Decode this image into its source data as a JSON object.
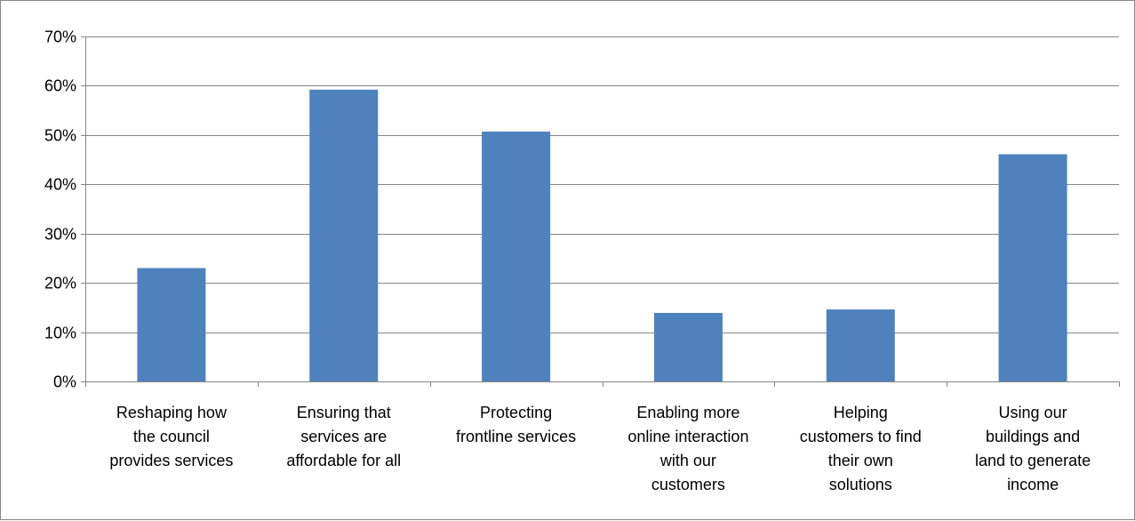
{
  "chart_data": {
    "type": "bar",
    "categories": [
      [
        "Reshaping how",
        "the council",
        "provides services"
      ],
      [
        "Ensuring that",
        "services are",
        "affordable for all"
      ],
      [
        "Protecting",
        "frontline services"
      ],
      [
        "Enabling more",
        "online interaction",
        "with our",
        "customers"
      ],
      [
        "Helping",
        "customers to find",
        "their own",
        "solutions"
      ],
      [
        "Using our",
        "buildings and",
        "land to generate",
        "income"
      ]
    ],
    "values": [
      23,
      59.2,
      50.7,
      13.9,
      14.6,
      46.1
    ],
    "ylim": [
      0,
      70
    ],
    "yticks": [
      0,
      10,
      20,
      30,
      40,
      50,
      60,
      70
    ],
    "ytick_labels": [
      "0%",
      "10%",
      "20%",
      "30%",
      "40%",
      "50%",
      "60%",
      "70%"
    ],
    "grid": true,
    "title": "",
    "xlabel": "",
    "ylabel": "",
    "colors": {
      "bar": "#4F81BD",
      "grid": "#868686",
      "axis": "#868686",
      "frame": "#868686"
    }
  }
}
